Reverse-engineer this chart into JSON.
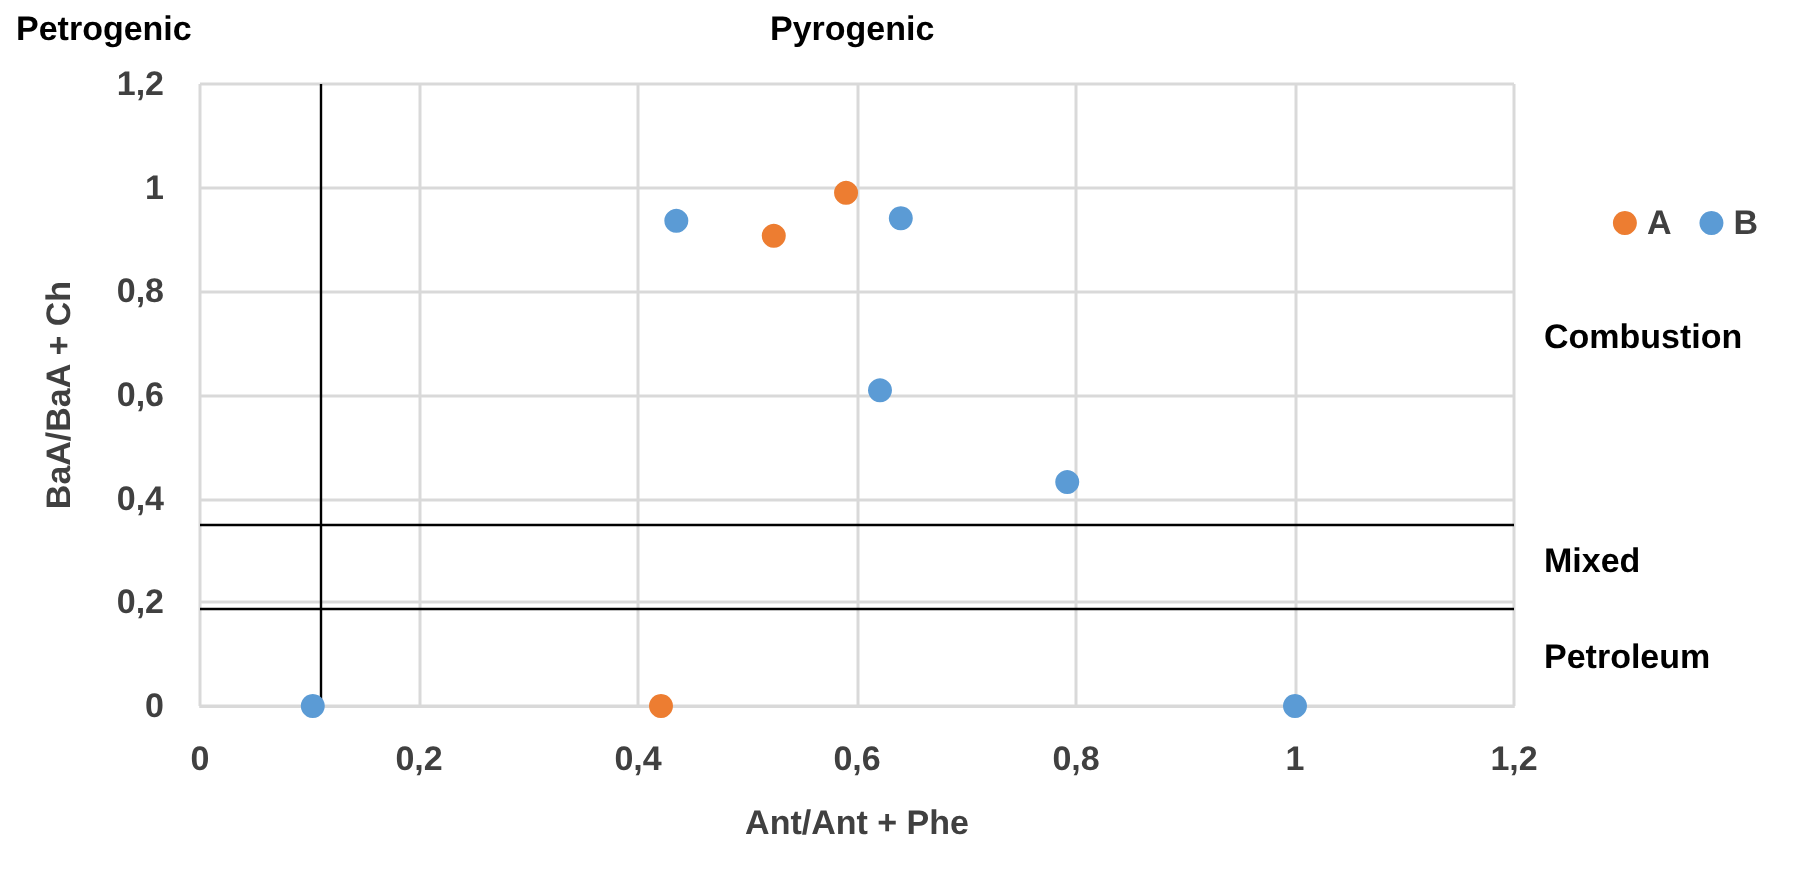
{
  "chart_data": {
    "type": "scatter",
    "xlabel": "Ant/Ant + Phe",
    "ylabel": "BaA/BaA + Ch",
    "series": [
      {
        "name": "A",
        "color": "#ed7d31",
        "x": [
          0.524,
          0.59,
          0.421
        ],
        "values": [
          0.907,
          0.99,
          0
        ]
      },
      {
        "name": "B",
        "color": "#5b9bd5",
        "x": [
          0.435,
          0.64,
          0.621,
          0.792,
          0.103,
          1.0
        ],
        "values": [
          0.936,
          0.941,
          0.609,
          0.432,
          0,
          0
        ]
      }
    ],
    "xlim": [
      0,
      1.2
    ],
    "ylim": [
      0,
      1.2
    ],
    "xticks": [
      0,
      {
        "value": 0.2,
        "label": "0,2"
      },
      {
        "value": 0.4,
        "label": "0,4"
      },
      {
        "value": 0.6,
        "label": "0,6"
      },
      {
        "value": 0.8,
        "label": "0,8"
      },
      1,
      {
        "value": 1.2,
        "label": "1,2"
      }
    ],
    "yticks": [
      0,
      {
        "value": 0.2,
        "label": "0,2"
      },
      {
        "value": 0.4,
        "label": "0,4"
      },
      {
        "value": 0.6,
        "label": "0,6"
      },
      {
        "value": 0.8,
        "label": "0,8"
      },
      1,
      {
        "value": 1.2,
        "label": "1,2"
      }
    ],
    "ref_lines": [
      {
        "axis": "x",
        "value": 0.11,
        "color": "#000000"
      },
      {
        "axis": "y",
        "value": 0.35,
        "color": "#000000"
      },
      {
        "axis": "y",
        "value": 0.19,
        "color": "#000000"
      }
    ],
    "annotations": [
      "Petrogenic",
      "Pyrogenic",
      "Combustion",
      "Mixed",
      "Petroleum"
    ],
    "grid": true,
    "legend": "top right",
    "marker": "circle"
  }
}
